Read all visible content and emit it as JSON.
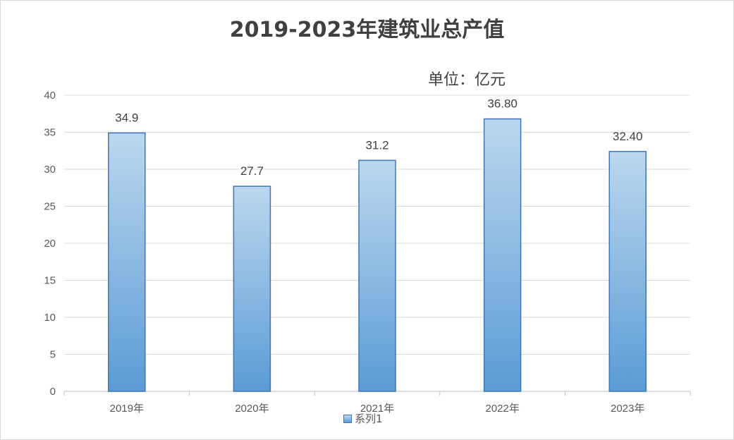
{
  "chart_data": {
    "type": "bar",
    "title": "2019-2023年建筑业总产值",
    "unit_label": "单位：亿元",
    "categories": [
      "2019年",
      "2020年",
      "2021年",
      "2022年",
      "2023年"
    ],
    "series": [
      {
        "name": "系列1",
        "values": [
          34.9,
          27.7,
          31.2,
          36.8,
          32.4
        ],
        "labels": [
          "34.9",
          "27.7",
          "31.2",
          "36.80",
          "32.40"
        ]
      }
    ],
    "ylim": [
      0,
      40
    ],
    "yticks": [
      0,
      5,
      10,
      15,
      20,
      25,
      30,
      35,
      40
    ],
    "grid": true,
    "legend": "bottom",
    "colors": {
      "bar_top": "#bcd7ee",
      "bar_bottom": "#5b9bd5",
      "bar_border": "#3f76b6",
      "grid": "#d9d9d9",
      "axis_text": "#595959"
    }
  }
}
